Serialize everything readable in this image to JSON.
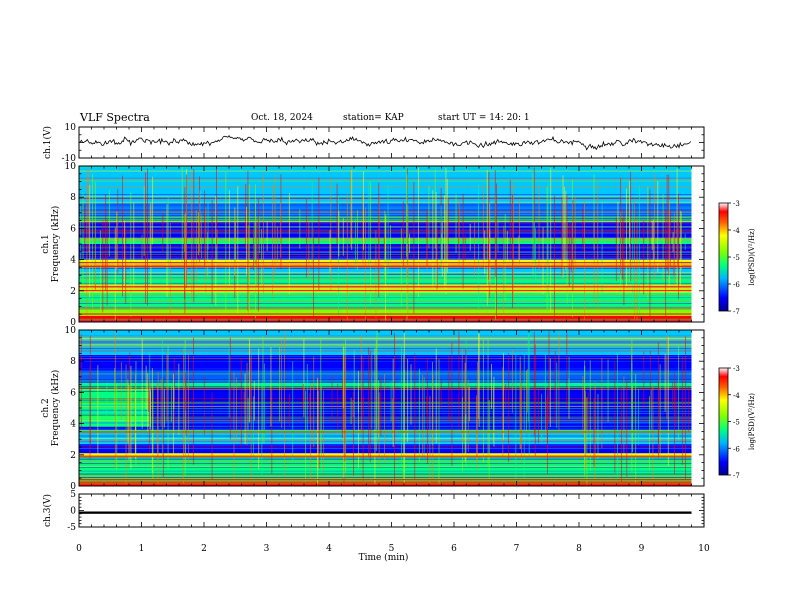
{
  "header": {
    "title": "VLF Spectra",
    "date": "Oct. 18, 2024",
    "station": "station= KAP",
    "start": "start  UT =   14: 20: 1"
  },
  "chart_data": [
    {
      "type": "line",
      "panel": "ch1-waveform",
      "ylabel": "ch.1(V)",
      "ylim": [
        -10,
        10
      ],
      "yticks": [
        "10",
        "-10"
      ],
      "xlim": [
        0,
        10
      ],
      "description_values": "noisy waveform oscillating roughly between -4 and +4 V over 0 to 9.8 min"
    },
    {
      "type": "heatmap",
      "panel": "ch1-spectrogram",
      "ylabel": "ch.1\nFrequency (kHz)",
      "ylabel_lines": [
        "ch.1",
        "Frequency (kHz)"
      ],
      "ylim": [
        0,
        10
      ],
      "yticks": [
        "0",
        "2",
        "4",
        "6",
        "8",
        "10"
      ],
      "xlim": [
        0,
        10
      ],
      "data_extent_x": [
        0,
        9.8
      ],
      "colorbar": {
        "label": "log(PSD)(V²/Hz)",
        "range": [
          -7,
          -3
        ],
        "ticks": [
          "-3",
          "-4",
          "-5",
          "-6",
          "-7"
        ]
      },
      "bands": [
        {
          "f0": 0.0,
          "f1": 0.4,
          "level": -3.2
        },
        {
          "f0": 0.4,
          "f1": 0.9,
          "level": -4.6
        },
        {
          "f0": 0.9,
          "f1": 1.9,
          "level": -5.0
        },
        {
          "f0": 1.9,
          "f1": 2.4,
          "level": -4.0
        },
        {
          "f0": 2.4,
          "f1": 3.0,
          "level": -5.1
        },
        {
          "f0": 3.0,
          "f1": 3.5,
          "level": -5.3
        },
        {
          "f0": 3.5,
          "f1": 3.7,
          "level": -3.5
        },
        {
          "f0": 3.7,
          "f1": 4.0,
          "level": -4.1
        },
        {
          "f0": 4.0,
          "f1": 5.0,
          "level": -6.3
        },
        {
          "f0": 5.0,
          "f1": 5.4,
          "level": -5.2
        },
        {
          "f0": 5.4,
          "f1": 6.4,
          "level": -6.4
        },
        {
          "f0": 6.4,
          "f1": 6.7,
          "level": -5.0
        },
        {
          "f0": 6.7,
          "f1": 7.6,
          "level": -6.1
        },
        {
          "f0": 7.6,
          "f1": 10.0,
          "level": -5.4
        }
      ]
    },
    {
      "type": "heatmap",
      "panel": "ch2-spectrogram",
      "ylabel": "ch.2\nFrequency (kHz)",
      "ylabel_lines": [
        "ch.2",
        "Frequency (kHz)"
      ],
      "ylim": [
        0,
        10
      ],
      "yticks": [
        "0",
        "2",
        "4",
        "6",
        "8",
        "10"
      ],
      "xlim": [
        0,
        10
      ],
      "data_extent_x": [
        0,
        9.8
      ],
      "colorbar": {
        "label": "log(PSD)(V²/Hz)",
        "range": [
          -7,
          -3
        ],
        "ticks": [
          "-3",
          "-4",
          "-5",
          "-6",
          "-7"
        ]
      },
      "bands": [
        {
          "f0": 0.0,
          "f1": 0.4,
          "level": -3.4
        },
        {
          "f0": 0.4,
          "f1": 1.8,
          "level": -5.0
        },
        {
          "f0": 1.8,
          "f1": 2.1,
          "level": -4.2
        },
        {
          "f0": 2.1,
          "f1": 2.7,
          "level": -6.2
        },
        {
          "f0": 2.7,
          "f1": 3.4,
          "level": -5.3
        },
        {
          "f0": 3.4,
          "f1": 3.6,
          "level": -4.9
        },
        {
          "f0": 3.6,
          "f1": 6.3,
          "level": -6.3
        },
        {
          "f0": 6.3,
          "f1": 6.6,
          "level": -5.2
        },
        {
          "f0": 6.6,
          "f1": 7.4,
          "level": -6.0
        },
        {
          "f0": 7.4,
          "f1": 8.4,
          "level": -6.4
        },
        {
          "f0": 8.4,
          "f1": 10.0,
          "level": -5.6
        }
      ],
      "patch": {
        "x0": 0,
        "x1": 1.15,
        "f0": 3.8,
        "f1": 6.5,
        "level": -4.9
      }
    },
    {
      "type": "line",
      "panel": "ch3-waveform",
      "ylabel": "ch.3(V)",
      "ylim": [
        -5,
        5
      ],
      "yticks": [
        "5",
        "0",
        "-5"
      ],
      "xlim": [
        0,
        10
      ],
      "xlabel": "Time (min)",
      "xticks": [
        "0",
        "1",
        "2",
        "3",
        "4",
        "5",
        "6",
        "7",
        "8",
        "9",
        "10"
      ],
      "band_value": [
        -1.0,
        -0.3
      ],
      "data_extent_x": [
        0,
        9.8
      ]
    }
  ],
  "colors": {
    "colormap": [
      "#00008f",
      "#0000ff",
      "#0060ff",
      "#00c8ff",
      "#00ff80",
      "#80ff00",
      "#ffff00",
      "#ff8000",
      "#ff0000",
      "#ffffff"
    ]
  }
}
